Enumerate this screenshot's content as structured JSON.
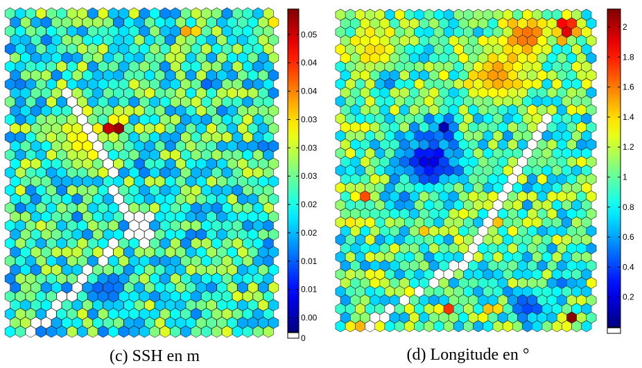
{
  "chart_data": [
    {
      "type": "heatmap",
      "subtype": "hexagonal-som-map",
      "caption": "(c) SSH en m",
      "grid": {
        "cols": 26,
        "rows": 37
      },
      "colormap": "jet",
      "empty_color": "#ffffff",
      "colorbar": {
        "range": [
          0,
          0.057
        ],
        "ticks": [
          0.05,
          0.04,
          0.04,
          0.03,
          0.03,
          0.03,
          0.02,
          0.02,
          0.01,
          0.01,
          0.0,
          0
        ],
        "tick_values": [
          0.0525,
          0.0475,
          0.0425,
          0.0375,
          0.0325,
          0.0275,
          0.0225,
          0.0175,
          0.0125,
          0.0075,
          0.0025,
          0
        ],
        "tick_labels": [
          "0.05",
          "0.04",
          "0.04",
          "0.03",
          "0.03",
          "0.03",
          "0.02",
          "0.02",
          "0.01",
          "0.01",
          "0.00",
          "0"
        ]
      },
      "base_value": 0.024,
      "empty_line": [
        [
          5.5,
          8.5
        ],
        [
          13.2,
          26.5
        ],
        [
          13.2,
          22.5
        ],
        [
          2.2,
          36.0
        ]
      ],
      "hotspots": [
        {
          "c": 7.0,
          "r": 14.5,
          "v": 0.036,
          "s": 2.3
        },
        {
          "c": 10.5,
          "r": 13.0,
          "v": 0.056,
          "s": 0.5
        },
        {
          "c": 9.5,
          "r": 13.0,
          "v": 0.053,
          "s": 0.5
        },
        {
          "c": 17.5,
          "r": 2.0,
          "v": 0.052,
          "s": 0.4
        },
        {
          "c": 25.0,
          "r": 1.0,
          "v": 0.044,
          "s": 0.4
        },
        {
          "c": 3.5,
          "r": 7.5,
          "v": 0.038,
          "s": 0.4
        },
        {
          "c": 18.5,
          "r": 9.5,
          "v": 0.034,
          "s": 0.4
        },
        {
          "c": 13.0,
          "r": 9.5,
          "v": 0.034,
          "s": 0.4
        },
        {
          "c": 25.0,
          "r": 3.5,
          "v": 0.034,
          "s": 0.6
        },
        {
          "c": 9.5,
          "r": 31.5,
          "v": 0.012,
          "s": 1.3
        },
        {
          "c": 5.0,
          "r": 19.0,
          "v": 0.012,
          "s": 0.6
        },
        {
          "c": 12.5,
          "r": 17.0,
          "v": 0.014,
          "s": 0.6
        },
        {
          "c": 19.0,
          "r": 8.0,
          "v": 0.013,
          "s": 0.5
        },
        {
          "c": 2.0,
          "r": 4.5,
          "v": 0.016,
          "s": 0.8
        },
        {
          "c": 19.5,
          "r": 31.0,
          "v": 0.015,
          "s": 0.8
        },
        {
          "c": 15.5,
          "r": 32.5,
          "v": 0.016,
          "s": 0.7
        }
      ]
    },
    {
      "type": "heatmap",
      "subtype": "hexagonal-som-map",
      "caption": "(d) Longitude en °",
      "grid": {
        "cols": 26,
        "rows": 37
      },
      "colormap": "jet",
      "empty_color": "#ffffff",
      "colorbar": {
        "range": [
          0,
          2.12
        ],
        "ticks": [
          2,
          1.8,
          1.6,
          1.4,
          1.2,
          1,
          0.8,
          0.6,
          0.4,
          0.2
        ],
        "tick_labels": [
          "2",
          "1.8",
          "1.6",
          "1.4",
          "1.2",
          "1",
          "0.8",
          "0.6",
          "0.4",
          "0.2"
        ]
      },
      "base_value": 0.95,
      "empty_line": [
        [
          21.0,
          12.0
        ],
        [
          12.0,
          29.0
        ],
        [
          2.5,
          36.0
        ]
      ],
      "hotspots": [
        {
          "c": 23.0,
          "r": 1.5,
          "v": 2.1,
          "s": 0.9
        },
        {
          "c": 19.0,
          "r": 2.5,
          "v": 1.65,
          "s": 1.8
        },
        {
          "c": 16.0,
          "r": 7.0,
          "v": 1.55,
          "s": 2.2
        },
        {
          "c": 3.5,
          "r": 4.0,
          "v": 1.4,
          "s": 2.2
        },
        {
          "c": 9.0,
          "r": 17.0,
          "v": 0.2,
          "s": 2.1
        },
        {
          "c": 10.5,
          "r": 13.0,
          "v": 0.1,
          "s": 0.8
        },
        {
          "c": 5.0,
          "r": 7.5,
          "v": 0.35,
          "s": 0.7
        },
        {
          "c": 6.5,
          "r": 22.0,
          "v": 0.45,
          "s": 0.7
        },
        {
          "c": 2.5,
          "r": 21.0,
          "v": 1.7,
          "s": 0.6
        },
        {
          "c": 1.5,
          "r": 24.0,
          "v": 1.75,
          "s": 0.4
        },
        {
          "c": 9.0,
          "r": 25.0,
          "v": 1.8,
          "s": 0.4
        },
        {
          "c": 15.5,
          "r": 24.0,
          "v": 1.6,
          "s": 0.6
        },
        {
          "c": 12.5,
          "r": 26.0,
          "v": 1.5,
          "s": 0.5
        },
        {
          "c": 19.0,
          "r": 33.5,
          "v": 0.4,
          "s": 1.3
        },
        {
          "c": 22.5,
          "r": 31.0,
          "v": 0.5,
          "s": 0.8
        },
        {
          "c": 15.5,
          "r": 34.0,
          "v": 1.95,
          "s": 0.4
        },
        {
          "c": 23.5,
          "r": 35.0,
          "v": 2.1,
          "s": 0.4
        },
        {
          "c": 11.0,
          "r": 34.0,
          "v": 1.75,
          "s": 0.4
        },
        {
          "c": 1.5,
          "r": 36.0,
          "v": 1.9,
          "s": 0.4
        },
        {
          "c": 23.0,
          "r": 13.5,
          "v": 0.5,
          "s": 0.5
        }
      ]
    }
  ]
}
